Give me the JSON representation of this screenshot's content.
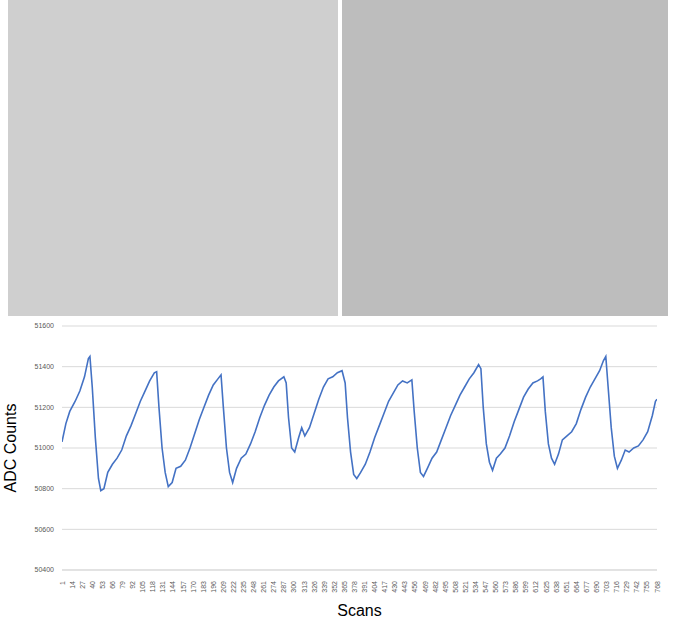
{
  "chart_data": {
    "type": "line",
    "x_label": "Scans",
    "y_label": "ADC Counts",
    "color": "#4472c4",
    "grid": true,
    "xlim": [
      1,
      768
    ],
    "ylim": [
      50400,
      51600
    ],
    "xticks": [
      1,
      14,
      27,
      40,
      53,
      66,
      79,
      92,
      105,
      118,
      131,
      144,
      157,
      170,
      183,
      196,
      209,
      222,
      235,
      248,
      261,
      274,
      287,
      300,
      313,
      326,
      339,
      352,
      365,
      378,
      391,
      404,
      417,
      430,
      443,
      456,
      469,
      482,
      495,
      508,
      521,
      534,
      547,
      560,
      573,
      586,
      599,
      612,
      625,
      638,
      651,
      664,
      677,
      690,
      703,
      716,
      729,
      742,
      755,
      768
    ],
    "yticks": [
      50400,
      50600,
      50800,
      51000,
      51200,
      51400,
      51600
    ],
    "x": [
      1,
      6,
      11,
      18,
      24,
      30,
      35,
      37,
      40,
      44,
      48,
      51,
      55,
      60,
      66,
      72,
      78,
      84,
      90,
      96,
      102,
      108,
      114,
      120,
      123,
      126,
      130,
      134,
      138,
      143,
      148,
      154,
      160,
      166,
      172,
      178,
      184,
      190,
      196,
      202,
      206,
      209,
      213,
      217,
      221,
      226,
      232,
      238,
      244,
      250,
      256,
      262,
      268,
      274,
      280,
      287,
      290,
      293,
      297,
      301,
      306,
      310,
      314,
      320,
      326,
      332,
      338,
      344,
      350,
      356,
      362,
      366,
      369,
      373,
      377,
      381,
      386,
      392,
      398,
      404,
      410,
      416,
      422,
      428,
      434,
      440,
      446,
      452,
      455,
      459,
      463,
      467,
      472,
      478,
      484,
      490,
      496,
      502,
      508,
      514,
      520,
      526,
      532,
      538,
      541,
      544,
      548,
      552,
      556,
      561,
      566,
      572,
      578,
      584,
      590,
      596,
      602,
      608,
      614,
      618,
      621,
      624,
      628,
      632,
      636,
      641,
      646,
      652,
      658,
      664,
      670,
      676,
      682,
      688,
      694,
      699,
      702,
      705,
      709,
      713,
      717,
      722,
      727,
      732,
      738,
      744,
      750,
      756,
      762,
      766,
      768
    ],
    "values": [
      51030,
      51120,
      51180,
      51230,
      51280,
      51350,
      51440,
      51450,
      51300,
      51050,
      50850,
      50790,
      50800,
      50880,
      50920,
      50950,
      50990,
      51060,
      51110,
      51170,
      51230,
      51280,
      51330,
      51370,
      51375,
      51200,
      51000,
      50880,
      50810,
      50830,
      50900,
      50910,
      50940,
      51000,
      51070,
      51140,
      51200,
      51260,
      51310,
      51340,
      51360,
      51200,
      51000,
      50880,
      50830,
      50900,
      50950,
      50970,
      51020,
      51080,
      51150,
      51210,
      51260,
      51300,
      51330,
      51350,
      51320,
      51150,
      51000,
      50980,
      51050,
      51100,
      51060,
      51100,
      51170,
      51240,
      51300,
      51340,
      51350,
      51370,
      51380,
      51320,
      51150,
      50980,
      50870,
      50850,
      50880,
      50920,
      50980,
      51050,
      51110,
      51170,
      51230,
      51270,
      51310,
      51330,
      51320,
      51335,
      51180,
      51000,
      50880,
      50860,
      50900,
      50950,
      50980,
      51040,
      51100,
      51160,
      51210,
      51260,
      51300,
      51340,
      51370,
      51410,
      51390,
      51200,
      51020,
      50930,
      50890,
      50950,
      50970,
      51000,
      51060,
      51130,
      51190,
      51250,
      51290,
      51320,
      51330,
      51340,
      51350,
      51180,
      51020,
      50950,
      50920,
      50970,
      51040,
      51060,
      51080,
      51120,
      51190,
      51250,
      51300,
      51340,
      51380,
      51430,
      51450,
      51300,
      51100,
      50960,
      50900,
      50940,
      50990,
      50980,
      51000,
      51010,
      51040,
      51080,
      51160,
      51230,
      51240
    ]
  }
}
